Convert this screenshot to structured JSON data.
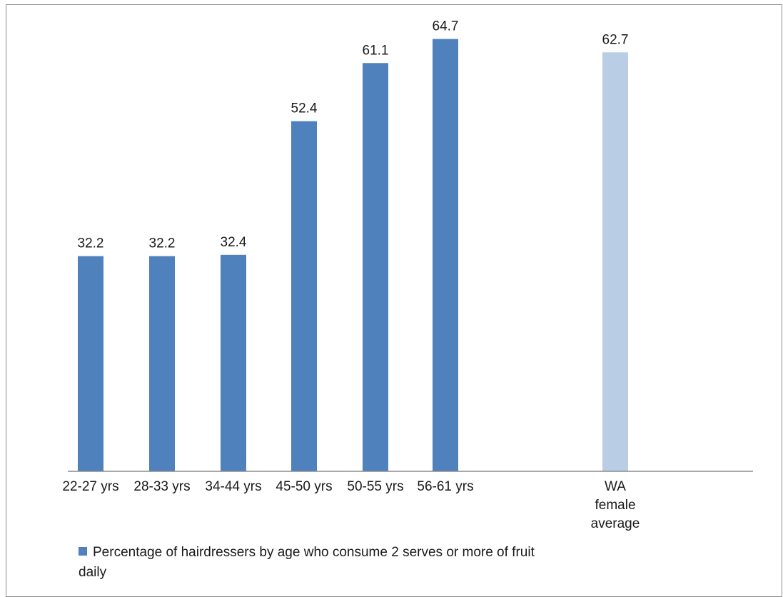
{
  "chart_data": {
    "type": "bar",
    "categories": [
      "22-27 yrs",
      "28-33 yrs",
      "34-44 yrs",
      "45-50 yrs",
      "50-55 yrs",
      "56-61 yrs",
      "WA female average"
    ],
    "category_display": [
      [
        "22-27 yrs"
      ],
      [
        "28-33 yrs"
      ],
      [
        "34-44 yrs"
      ],
      [
        "45-50 yrs"
      ],
      [
        "50-55 yrs"
      ],
      [
        "56-61 yrs"
      ],
      [
        "WA",
        "female",
        "average"
      ]
    ],
    "values": [
      32.2,
      32.2,
      32.4,
      52.4,
      61.1,
      64.7,
      62.7
    ],
    "data_labels": [
      "32.2",
      "32.2",
      "32.4",
      "52.4",
      "61.1",
      "64.7",
      "62.7"
    ],
    "colors": [
      "#4f81bd",
      "#4f81bd",
      "#4f81bd",
      "#4f81bd",
      "#4f81bd",
      "#4f81bd",
      "#b9cde5"
    ],
    "ylim": [
      0,
      70
    ],
    "grid": false,
    "legend_position": "bottom-left",
    "series": [
      {
        "name": "Percentage of hairdressers by age who consume 2 serves or more of fruit daily",
        "color": "#4f81bd"
      }
    ]
  }
}
